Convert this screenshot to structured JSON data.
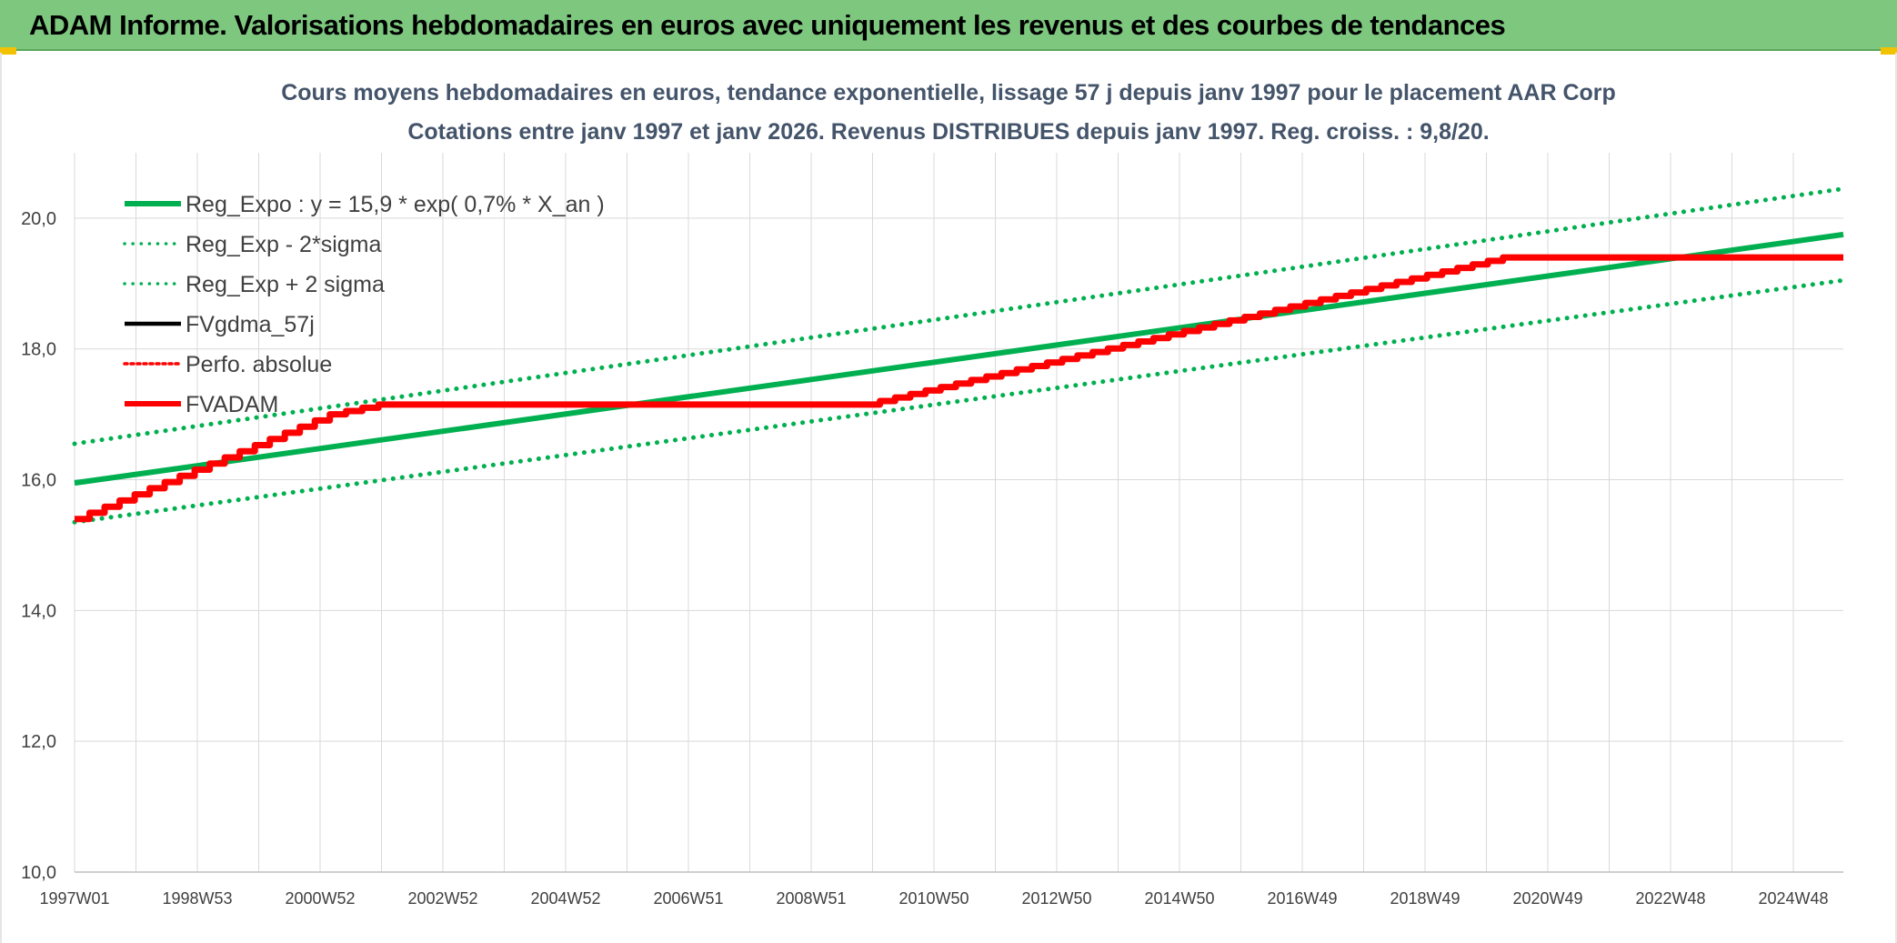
{
  "banner": {
    "title": "ADAM Informe. Valorisations hebdomadaires en euros avec uniquement les revenus et des courbes de tendances"
  },
  "colors": {
    "banner_bg": "#7dc77f",
    "green": "#00b050",
    "red": "#ff0000",
    "black": "#000000",
    "grid": "#d9d9d9",
    "title": "#44546a"
  },
  "chart_data": {
    "type": "line",
    "title": "Cours moyens hebdomadaires en euros, tendance exponentielle, lissage 57 j depuis janv 1997 pour le placement AAR Corp",
    "subtitle": "Cotations entre janv 1997 et janv 2026. Revenus DISTRIBUES depuis janv 1997. Reg. croiss. : 9,8/20.",
    "xlabel": "",
    "ylabel": "",
    "ylim": [
      10,
      21
    ],
    "yticks": [
      "10,0",
      "12,0",
      "14,0",
      "16,0",
      "18,0",
      "20,0"
    ],
    "xlim": [
      1997.0,
      2026.1
    ],
    "xticks": [
      "1997W01",
      "1998W53",
      "2000W52",
      "2002W52",
      "2004W52",
      "2006W51",
      "2008W51",
      "2010W50",
      "2012W50",
      "2014W50",
      "2016W49",
      "2018W49",
      "2020W49",
      "2022W48",
      "2024W48"
    ],
    "grid": true,
    "legend_position": "top-left",
    "series": [
      {
        "name": "Reg_Expo : y = 15,9 * exp( 0,7% *  X_an )",
        "style": "solid",
        "color": "#00b050",
        "x": [
          1997.0,
          2026.1
        ],
        "values": [
          15.95,
          19.75
        ]
      },
      {
        "name": "Reg_Exp - 2*sigma",
        "style": "dotted",
        "color": "#00b050",
        "x": [
          1997.0,
          2026.1
        ],
        "values": [
          15.35,
          19.05
        ]
      },
      {
        "name": "Reg_Exp + 2 sigma",
        "style": "dotted",
        "color": "#00b050",
        "x": [
          1997.0,
          2026.1
        ],
        "values": [
          16.55,
          20.45
        ]
      },
      {
        "name": "FVgdma_57j",
        "style": "solid",
        "color": "#000000",
        "x": [],
        "values": []
      },
      {
        "name": "Perfo. absolue",
        "style": "dotted",
        "color": "#ff0000",
        "x": [],
        "values": []
      },
      {
        "name": "FVADAM",
        "style": "solid",
        "color": "#ff0000",
        "x": [
          1997.0,
          2001.2,
          2002.0,
          2010.0,
          2020.5,
          2026.1
        ],
        "values": [
          15.4,
          17.0,
          17.15,
          17.15,
          19.4,
          19.4
        ]
      }
    ]
  }
}
